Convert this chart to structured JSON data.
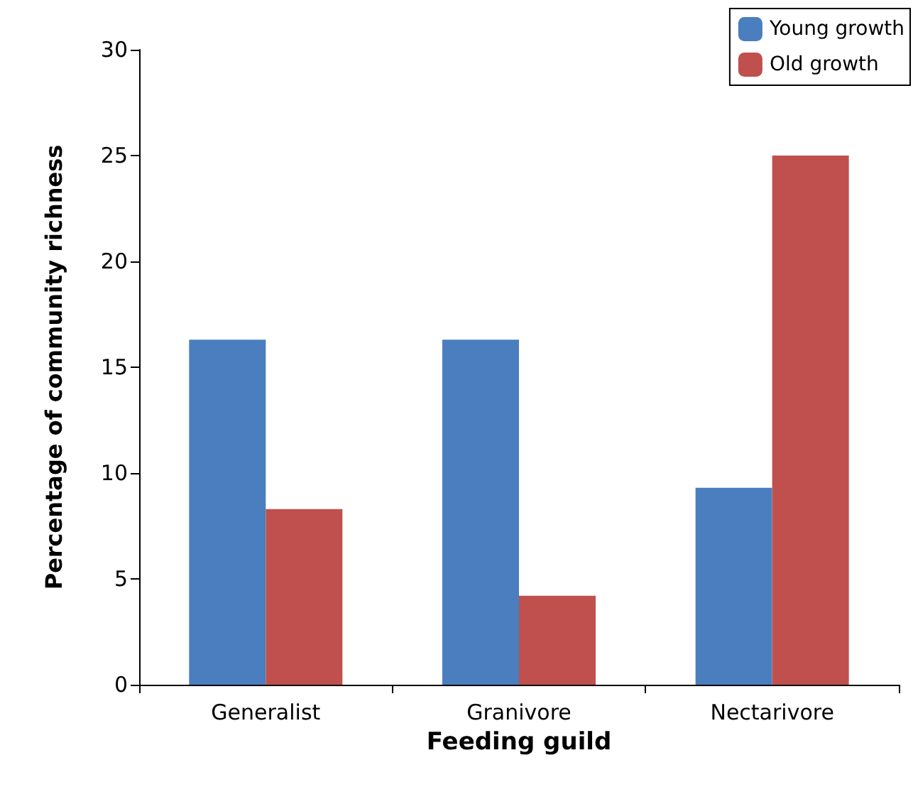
{
  "chart_data": {
    "type": "bar",
    "xlabel": "Feeding guild",
    "ylabel": "Percentage of community richness",
    "categories": [
      "Generalist",
      "Granivore",
      "Nectarivore"
    ],
    "series": [
      {
        "name": "Young growth",
        "color": "#4a7ebf",
        "values": [
          16.3,
          16.3,
          9.3
        ]
      },
      {
        "name": "Old growth",
        "color": "#c0504d",
        "values": [
          8.3,
          4.2,
          25
        ]
      }
    ],
    "ylim": [
      0,
      30
    ],
    "yticks": [
      0,
      5,
      10,
      15,
      20,
      25,
      30
    ],
    "grid": false,
    "legend": "top right"
  }
}
